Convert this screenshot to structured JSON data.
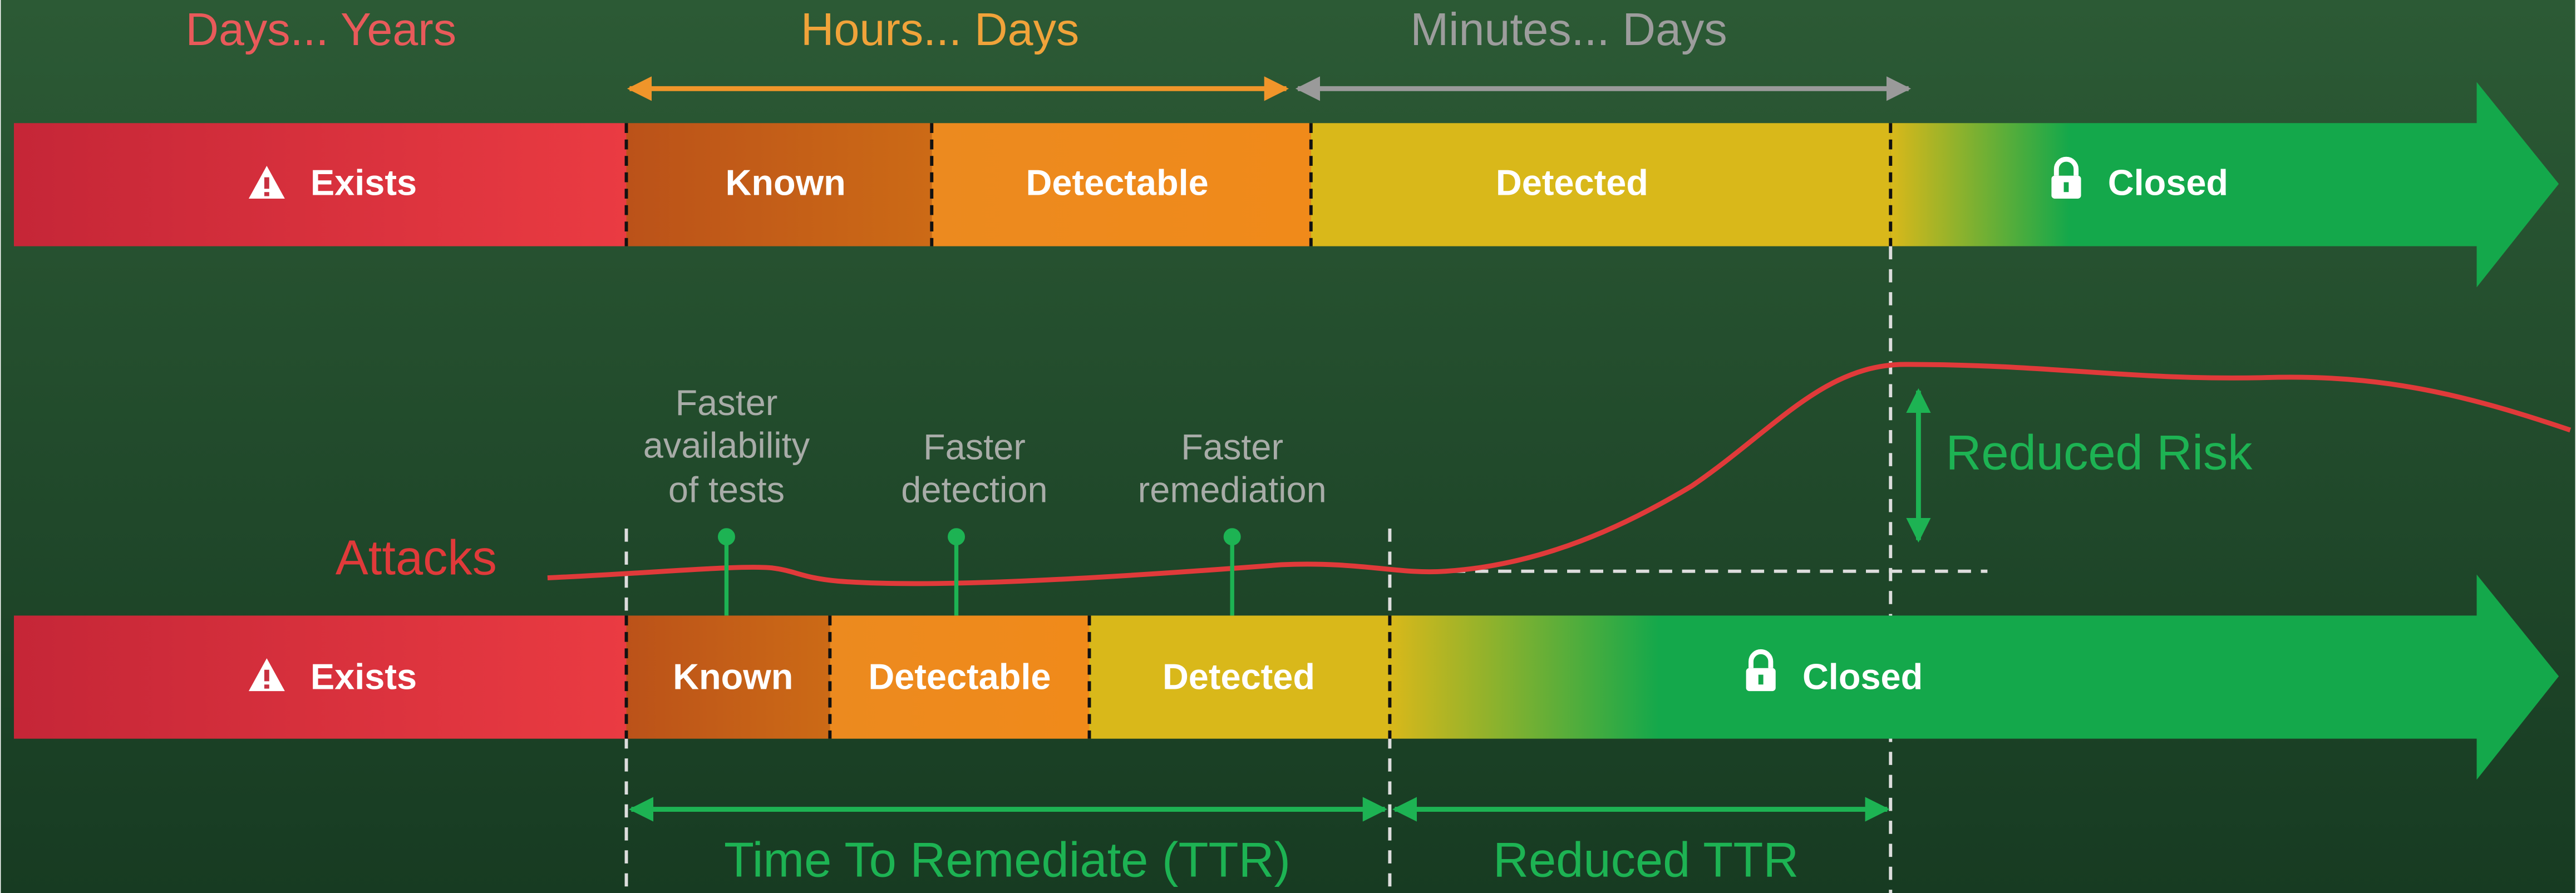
{
  "top": {
    "ranges": [
      "Days... Years",
      "Hours... Days",
      "Minutes... Days"
    ],
    "stages": [
      "Exists",
      "Known",
      "Detectable",
      "Detected",
      "Closed"
    ]
  },
  "bottom": {
    "stages": [
      "Exists",
      "Known",
      "Detectable",
      "Detected",
      "Closed"
    ]
  },
  "annotations": {
    "tests": [
      "Faster",
      "availability",
      "of tests"
    ],
    "detection": [
      "Faster",
      "detection"
    ],
    "remediation": [
      "Faster",
      "remediation"
    ],
    "attacks": "Attacks",
    "risk": "Reduced Risk",
    "ttr": "Time To Remediate (TTR)",
    "reduced_ttr": "Reduced TTR"
  }
}
